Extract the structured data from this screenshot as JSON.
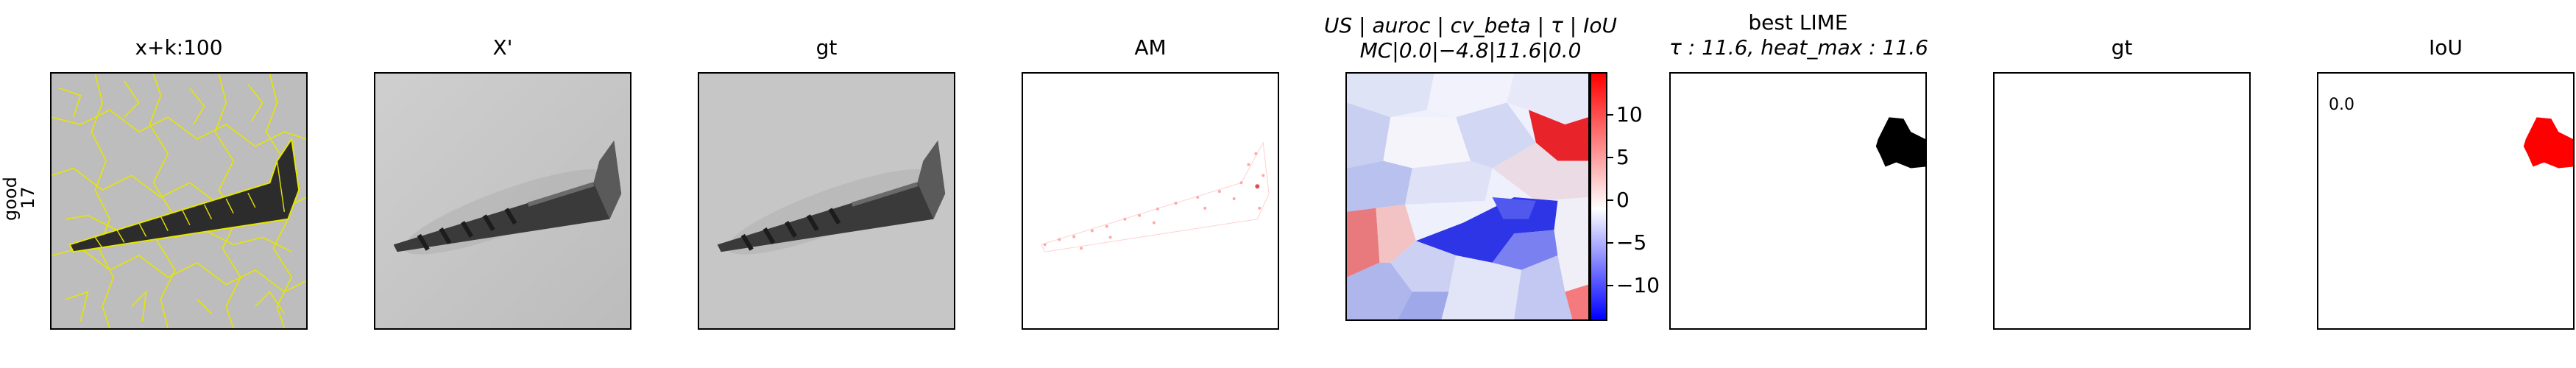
{
  "row_label": {
    "line1": "good",
    "line2": "17"
  },
  "titles": {
    "p1": "x+k:100",
    "p2": "X'",
    "p3": "gt",
    "p4": "AM",
    "p5_line1": "US | auroc | cv_beta | τ | IoU",
    "p5_line2": "MC|0.0|−4.8|11.6|0.0",
    "p6_line1": "best LIME",
    "p6_line2": "τ : 11.6, heat_max : 11.6",
    "p7": "gt",
    "p8": "IoU"
  },
  "colorbar": {
    "ticks": [
      "10",
      "5",
      "0",
      "−5",
      "−10"
    ],
    "colors": {
      "max": "#ff0000",
      "mid": "#ffffff",
      "min": "#0000ff"
    }
  },
  "iou_value": "0.0",
  "colors": {
    "superpixel_edges": "#e6e600",
    "screw_dark": "#3a3a3a",
    "background_gray": "#c8c8c8",
    "mask_black": "#000000",
    "mask_red": "#ff0000"
  }
}
